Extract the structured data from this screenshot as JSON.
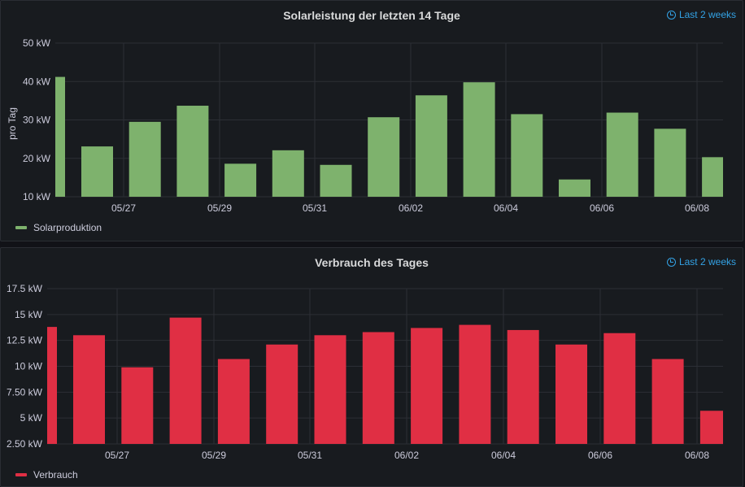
{
  "time_range_label": "Last 2 weeks",
  "chart_data": [
    {
      "type": "bar",
      "title": "Solarleistung der letzten 14 Tage",
      "ylabel": "pro Tag",
      "ylim": [
        10,
        50
      ],
      "yticks": [
        "10 kW",
        "20 kW",
        "30 kW",
        "40 kW",
        "50 kW"
      ],
      "ytick_values": [
        10,
        20,
        30,
        40,
        50
      ],
      "xticks": [
        "05/27",
        "05/29",
        "05/31",
        "06/02",
        "06/04",
        "06/06",
        "06/08"
      ],
      "x_start": 0.0,
      "x_end": 14.0,
      "color": "#7eb26d",
      "series": [
        {
          "name": "Solarproduktion",
          "values": [
            41.2,
            23.1,
            29.5,
            33.7,
            18.6,
            22.1,
            18.3,
            30.7,
            36.4,
            39.8,
            31.5,
            14.5,
            31.9,
            27.7,
            20.3
          ]
        }
      ]
    },
    {
      "type": "bar",
      "title": "Verbrauch des Tages",
      "ylabel": "",
      "ylim": [
        2.5,
        17.5
      ],
      "yticks": [
        "2.50 kW",
        "5 kW",
        "7.50 kW",
        "10 kW",
        "12.5 kW",
        "15 kW",
        "17.5 kW"
      ],
      "ytick_values": [
        2.5,
        5,
        7.5,
        10,
        12.5,
        15,
        17.5
      ],
      "xticks": [
        "05/27",
        "05/29",
        "05/31",
        "06/02",
        "06/04",
        "06/06",
        "06/08"
      ],
      "color": "#e02f44",
      "series": [
        {
          "name": "Verbrauch",
          "values": [
            13.8,
            13.0,
            9.9,
            14.7,
            10.7,
            12.1,
            13.0,
            13.3,
            13.7,
            14.0,
            13.5,
            12.1,
            13.2,
            10.7,
            5.7
          ]
        }
      ]
    }
  ]
}
